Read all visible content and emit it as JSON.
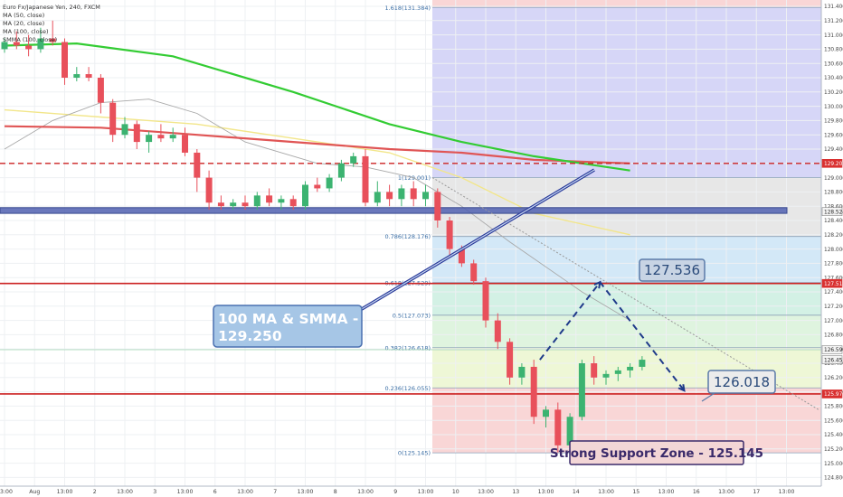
{
  "header": {
    "symbol_line": "Euro Fx/Japanese Yen, 240, FXCM",
    "indicators": [
      "MA (50, close)",
      "MA (20, close)",
      "MA (100, close)",
      "SMMA (100, close)"
    ]
  },
  "colors": {
    "bull": "#3cb371",
    "bear": "#e8505b",
    "ma50": "#f2e68a",
    "ma20": "#a8a8a8",
    "ma100": "#e05555",
    "smma100": "#33cc33",
    "support_band": "#5060b0",
    "annotation_fill": "#a6c6e6",
    "annotation_border": "#4a70b0",
    "hline": "#cc2222"
  },
  "chart_data": {
    "type": "candlestick",
    "title": "Euro Fx/Japanese Yen, 240, FXCM",
    "ylim": [
      124.8,
      131.5
    ],
    "y_ticks": [
      "131.400",
      "131.200",
      "131.000",
      "130.800",
      "130.600",
      "130.400",
      "130.200",
      "130.000",
      "129.800",
      "129.600",
      "129.400",
      "129.200",
      "129.000",
      "128.800",
      "128.600",
      "128.400",
      "128.200",
      "128.000",
      "127.800",
      "127.600",
      "127.400",
      "127.200",
      "127.000",
      "126.800",
      "126.600",
      "126.400",
      "126.200",
      "126.000",
      "125.800",
      "125.600",
      "125.400",
      "125.200",
      "125.000",
      "124.800"
    ],
    "x_ticks": [
      {
        "label": "13:00",
        "bar": 0
      },
      {
        "label": "Aug",
        "bar": 2.5
      },
      {
        "label": "13:00",
        "bar": 5
      },
      {
        "label": "2",
        "bar": 7.5
      },
      {
        "label": "13:00",
        "bar": 10
      },
      {
        "label": "3",
        "bar": 12.5
      },
      {
        "label": "13:00",
        "bar": 15
      },
      {
        "label": "6",
        "bar": 17.5
      },
      {
        "label": "13:00",
        "bar": 20
      },
      {
        "label": "7",
        "bar": 22.5
      },
      {
        "label": "13:00",
        "bar": 25
      },
      {
        "label": "8",
        "bar": 27.5
      },
      {
        "label": "13:00",
        "bar": 30
      },
      {
        "label": "9",
        "bar": 32.5
      },
      {
        "label": "13:00",
        "bar": 35
      },
      {
        "label": "10",
        "bar": 37.5
      },
      {
        "label": "13:00",
        "bar": 40
      },
      {
        "label": "13",
        "bar": 42.5
      },
      {
        "label": "13:00",
        "bar": 45
      },
      {
        "label": "14",
        "bar": 47.5
      },
      {
        "label": "13:00",
        "bar": 50
      },
      {
        "label": "15",
        "bar": 52.5
      },
      {
        "label": "13:00",
        "bar": 55
      },
      {
        "label": "16",
        "bar": 57.5
      },
      {
        "label": "13:00",
        "bar": 60
      },
      {
        "label": "17",
        "bar": 62.5
      },
      {
        "label": "13:00",
        "bar": 65
      }
    ],
    "price_tags": [
      {
        "label": "129.200",
        "value": 129.2,
        "color": "#e05555"
      },
      {
        "label": "128.524",
        "value": 128.524,
        "color": "#ffffff"
      },
      {
        "label": "127.518",
        "value": 127.518,
        "color": "#e05555"
      },
      {
        "label": "126.590",
        "value": 126.59,
        "color": "#ffffff"
      },
      {
        "label": "126.45",
        "value": 126.45,
        "color": "#ffffff"
      },
      {
        "label": "125.970",
        "value": 125.97,
        "color": "#e05555"
      }
    ],
    "candles": [
      [
        130.8,
        130.95,
        130.75,
        130.9
      ],
      [
        130.9,
        131.05,
        130.8,
        130.85
      ],
      [
        130.85,
        131.0,
        130.7,
        130.8
      ],
      [
        130.8,
        131.1,
        130.75,
        130.95
      ],
      [
        130.95,
        131.2,
        130.85,
        130.9
      ],
      [
        130.9,
        130.95,
        130.3,
        130.4
      ],
      [
        130.4,
        130.55,
        130.35,
        130.45
      ],
      [
        130.45,
        130.55,
        130.35,
        130.4
      ],
      [
        130.4,
        130.45,
        129.9,
        130.05
      ],
      [
        130.05,
        130.1,
        129.5,
        129.6
      ],
      [
        129.6,
        129.85,
        129.55,
        129.75
      ],
      [
        129.75,
        129.8,
        129.4,
        129.5
      ],
      [
        129.5,
        129.65,
        129.35,
        129.6
      ],
      [
        129.6,
        129.75,
        129.5,
        129.55
      ],
      [
        129.55,
        129.7,
        129.5,
        129.6
      ],
      [
        129.6,
        129.7,
        129.3,
        129.35
      ],
      [
        129.35,
        129.4,
        128.8,
        129.0
      ],
      [
        129.0,
        129.1,
        128.55,
        128.65
      ],
      [
        128.65,
        128.75,
        128.55,
        128.6
      ],
      [
        128.6,
        128.7,
        128.55,
        128.65
      ],
      [
        128.65,
        128.75,
        128.55,
        128.6
      ],
      [
        128.6,
        128.8,
        128.55,
        128.75
      ],
      [
        128.75,
        128.85,
        128.6,
        128.65
      ],
      [
        128.65,
        128.75,
        128.55,
        128.7
      ],
      [
        128.7,
        128.75,
        128.55,
        128.6
      ],
      [
        128.6,
        128.95,
        128.55,
        128.9
      ],
      [
        128.9,
        129.0,
        128.8,
        128.85
      ],
      [
        128.85,
        129.05,
        128.8,
        129.0
      ],
      [
        129.0,
        129.25,
        128.95,
        129.2
      ],
      [
        129.2,
        129.35,
        129.15,
        129.3
      ],
      [
        129.3,
        129.4,
        128.6,
        128.65
      ],
      [
        128.65,
        128.95,
        128.6,
        128.8
      ],
      [
        128.8,
        128.9,
        128.6,
        128.7
      ],
      [
        128.7,
        128.9,
        128.6,
        128.85
      ],
      [
        128.85,
        128.95,
        128.6,
        128.7
      ],
      [
        128.7,
        128.9,
        128.6,
        128.8
      ],
      [
        128.8,
        128.85,
        128.3,
        128.4
      ],
      [
        128.4,
        128.45,
        127.9,
        128.0
      ],
      [
        128.0,
        128.05,
        127.75,
        127.8
      ],
      [
        127.8,
        127.85,
        127.5,
        127.55
      ],
      [
        127.55,
        127.6,
        126.9,
        127.0
      ],
      [
        127.0,
        127.1,
        126.6,
        126.7
      ],
      [
        126.7,
        126.75,
        126.1,
        126.2
      ],
      [
        126.2,
        126.4,
        126.1,
        126.35
      ],
      [
        126.35,
        126.45,
        125.55,
        125.65
      ],
      [
        125.65,
        125.8,
        125.5,
        125.75
      ],
      [
        125.75,
        125.85,
        125.15,
        125.25
      ],
      [
        125.25,
        125.7,
        125.2,
        125.65
      ],
      [
        125.65,
        126.45,
        125.6,
        126.4
      ],
      [
        126.4,
        126.5,
        126.1,
        126.2
      ],
      [
        126.2,
        126.3,
        126.1,
        126.25
      ],
      [
        126.25,
        126.35,
        126.15,
        126.3
      ],
      [
        126.3,
        126.4,
        126.2,
        126.35
      ],
      [
        126.35,
        126.5,
        126.3,
        126.45
      ]
    ],
    "ma100": [
      [
        0,
        129.72
      ],
      [
        8,
        129.7
      ],
      [
        16,
        129.6
      ],
      [
        24,
        129.5
      ],
      [
        32,
        129.4
      ],
      [
        38,
        129.35
      ],
      [
        44,
        129.25
      ],
      [
        52,
        129.2
      ]
    ],
    "smma100": [
      [
        0,
        130.85
      ],
      [
        6,
        130.88
      ],
      [
        14,
        130.7
      ],
      [
        24,
        130.2
      ],
      [
        32,
        129.75
      ],
      [
        38,
        129.5
      ],
      [
        44,
        129.3
      ],
      [
        52,
        129.1
      ]
    ],
    "ma50": [
      [
        0,
        129.95
      ],
      [
        8,
        129.85
      ],
      [
        16,
        129.75
      ],
      [
        24,
        129.55
      ],
      [
        32,
        129.35
      ],
      [
        38,
        129.0
      ],
      [
        44,
        128.5
      ],
      [
        52,
        128.2
      ]
    ],
    "ma20": [
      [
        0,
        129.4
      ],
      [
        4,
        129.8
      ],
      [
        8,
        130.05
      ],
      [
        12,
        130.1
      ],
      [
        16,
        129.9
      ],
      [
        20,
        129.5
      ],
      [
        26,
        129.2
      ],
      [
        30,
        129.15
      ],
      [
        34,
        129.0
      ],
      [
        38,
        128.6
      ],
      [
        42,
        128.1
      ],
      [
        48,
        127.4
      ],
      [
        52,
        127.0
      ]
    ],
    "fibonacci": [
      {
        "label": "1.618(131.384)",
        "value": 131.384
      },
      {
        "label": "1(129.001)",
        "value": 129.001
      },
      {
        "label": "0.786(128.176)",
        "value": 128.176
      },
      {
        "label": "0.618(127.529)",
        "value": 127.529
      },
      {
        "label": "0.5(127.073)",
        "value": 127.073
      },
      {
        "label": "0.382(126.618)",
        "value": 126.618
      },
      {
        "label": "0.236(126.055)",
        "value": 126.055
      },
      {
        "label": "0(125.145)",
        "value": 125.145
      }
    ],
    "horizontal_lines": [
      129.2,
      127.518,
      125.97
    ],
    "support_band": [
      128.5,
      128.58
    ],
    "projection_path": [
      [
        44.5,
        126.45
      ],
      [
        49.5,
        127.536
      ],
      [
        56.5,
        126.018
      ]
    ],
    "annotations": [
      {
        "text": "100 MA & SMMA  -\n129.250"
      },
      {
        "text": "127.536"
      },
      {
        "text": "126.018"
      },
      {
        "text": "Strong Support Zone - 125.145"
      }
    ]
  }
}
